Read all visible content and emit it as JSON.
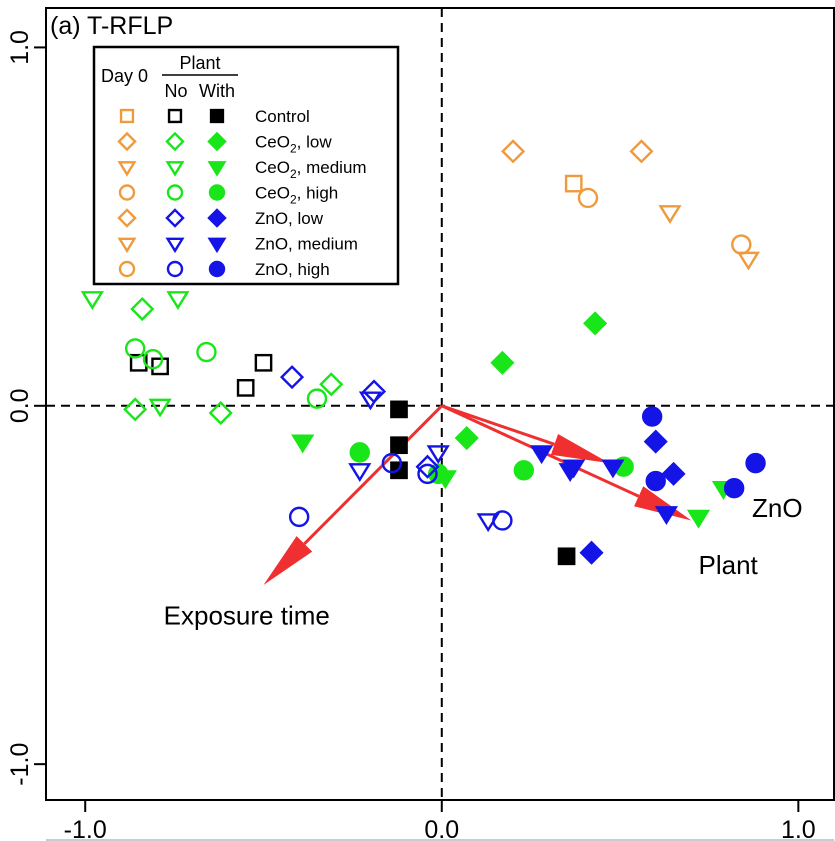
{
  "chart_data": {
    "type": "scatter",
    "title": "(a) T-RFLP",
    "xlabel": "",
    "ylabel": "",
    "xlim": [
      -1.11,
      1.1
    ],
    "ylim": [
      -1.1,
      1.11
    ],
    "x_ticks": [
      {
        "value": -1.0,
        "label": "-1.0"
      },
      {
        "value": 0.0,
        "label": "0.0"
      },
      {
        "value": 1.0,
        "label": "1.0"
      }
    ],
    "y_ticks": [
      {
        "value": 1.0,
        "label": "1.0"
      },
      {
        "value": 0.0,
        "label": "0.0"
      },
      {
        "value": -1.0,
        "label": "-1.0"
      }
    ],
    "reference_lines": {
      "x": 0,
      "y": 0,
      "style": "dashed"
    },
    "legend": {
      "placement": "top-left",
      "header_day0": "Day 0",
      "header_plant": "Plant",
      "header_no": "No",
      "header_with": "With",
      "rows": [
        {
          "label": "Control",
          "formula": "",
          "suffix": "",
          "marker": "square",
          "day0": true,
          "no": true,
          "with": true,
          "color": "#000000"
        },
        {
          "label": "",
          "formula": "CeO",
          "sub": "2",
          "suffix": ", low",
          "marker": "diamond",
          "day0": true,
          "no": true,
          "with": true,
          "color": "#19e619"
        },
        {
          "label": "",
          "formula": "CeO",
          "sub": "2",
          "suffix": ", medium",
          "marker": "triangle",
          "day0": true,
          "no": true,
          "with": true,
          "color": "#19e619"
        },
        {
          "label": "",
          "formula": "CeO",
          "sub": "2",
          "suffix": ", high",
          "marker": "circle",
          "day0": true,
          "no": true,
          "with": true,
          "color": "#19e619"
        },
        {
          "label": "ZnO, low",
          "formula": "",
          "suffix": "",
          "marker": "diamond",
          "day0": true,
          "no": true,
          "with": true,
          "color": "#1414e6"
        },
        {
          "label": "ZnO, medium",
          "formula": "",
          "suffix": "",
          "marker": "triangle",
          "day0": true,
          "no": true,
          "with": true,
          "color": "#1414e6"
        },
        {
          "label": "ZnO, high",
          "formula": "",
          "suffix": "",
          "marker": "circle",
          "day0": true,
          "no": true,
          "with": true,
          "color": "#1414e6"
        }
      ]
    },
    "colors": {
      "day0": "#ef9a3c",
      "ceo2": "#19e619",
      "zno": "#1414e6",
      "control": "#000000",
      "arrow": "#f03030"
    },
    "series": [
      {
        "group": "Control",
        "state": "day0",
        "marker": "square",
        "filled": false,
        "color": "#ef9a3c",
        "points": [
          [
            0.37,
            0.62
          ]
        ]
      },
      {
        "group": "Control",
        "state": "no_plant",
        "marker": "square",
        "filled": false,
        "color": "#000000",
        "points": [
          [
            -0.85,
            0.12
          ],
          [
            -0.79,
            0.11
          ],
          [
            -0.55,
            0.05
          ],
          [
            -0.5,
            0.12
          ]
        ]
      },
      {
        "group": "Control",
        "state": "with_plant",
        "marker": "square",
        "filled": true,
        "color": "#000000",
        "points": [
          [
            -0.12,
            -0.01
          ],
          [
            -0.12,
            -0.11
          ],
          [
            -0.12,
            -0.18
          ],
          [
            0.35,
            -0.42
          ]
        ]
      },
      {
        "group": "CeO2 low",
        "state": "day0",
        "marker": "diamond",
        "filled": false,
        "color": "#ef9a3c",
        "points": [
          [
            0.2,
            0.71
          ],
          [
            0.56,
            0.71
          ]
        ]
      },
      {
        "group": "CeO2 low",
        "state": "no_plant",
        "marker": "diamond",
        "filled": false,
        "color": "#19e619",
        "points": [
          [
            -0.84,
            0.27
          ],
          [
            -0.86,
            -0.01
          ],
          [
            -0.62,
            -0.02
          ],
          [
            -0.31,
            0.06
          ]
        ]
      },
      {
        "group": "CeO2 low",
        "state": "with_plant",
        "marker": "diamond",
        "filled": true,
        "color": "#19e619",
        "points": [
          [
            0.43,
            0.23
          ],
          [
            0.17,
            0.12
          ],
          [
            0.07,
            -0.09
          ]
        ]
      },
      {
        "group": "CeO2 medium",
        "state": "day0",
        "marker": "triangle",
        "filled": false,
        "color": "#ef9a3c",
        "points": [
          [
            0.64,
            0.54
          ],
          [
            0.86,
            0.41
          ]
        ]
      },
      {
        "group": "CeO2 medium",
        "state": "no_plant",
        "marker": "triangle",
        "filled": false,
        "color": "#19e619",
        "points": [
          [
            -0.98,
            0.3
          ],
          [
            -0.74,
            0.3
          ],
          [
            -0.79,
            0.0
          ]
        ]
      },
      {
        "group": "CeO2 medium",
        "state": "with_plant",
        "marker": "triangle",
        "filled": true,
        "color": "#19e619",
        "points": [
          [
            -0.39,
            -0.1
          ],
          [
            0.01,
            -0.2
          ],
          [
            0.72,
            -0.31
          ],
          [
            0.79,
            -0.23
          ]
        ]
      },
      {
        "group": "CeO2 high",
        "state": "day0",
        "marker": "circle",
        "filled": false,
        "color": "#ef9a3c",
        "points": [
          [
            0.41,
            0.58
          ],
          [
            0.84,
            0.45
          ]
        ]
      },
      {
        "group": "CeO2 high",
        "state": "no_plant",
        "marker": "circle",
        "filled": false,
        "color": "#19e619",
        "points": [
          [
            -0.86,
            0.16
          ],
          [
            -0.81,
            0.13
          ],
          [
            -0.66,
            0.15
          ],
          [
            -0.35,
            0.02
          ]
        ]
      },
      {
        "group": "CeO2 high",
        "state": "with_plant",
        "marker": "circle",
        "filled": true,
        "color": "#19e619",
        "points": [
          [
            -0.23,
            -0.13
          ],
          [
            -0.01,
            -0.19
          ],
          [
            0.23,
            -0.18
          ],
          [
            0.51,
            -0.17
          ]
        ]
      },
      {
        "group": "ZnO low",
        "state": "no_plant",
        "marker": "diamond",
        "filled": false,
        "color": "#1414e6",
        "points": [
          [
            -0.42,
            0.08
          ],
          [
            -0.19,
            0.04
          ],
          [
            -0.04,
            -0.17
          ]
        ]
      },
      {
        "group": "ZnO low",
        "state": "with_plant",
        "marker": "diamond",
        "filled": true,
        "color": "#1414e6",
        "points": [
          [
            0.6,
            -0.1
          ],
          [
            0.65,
            -0.19
          ],
          [
            0.42,
            -0.41
          ]
        ]
      },
      {
        "group": "ZnO medium",
        "state": "no_plant",
        "marker": "triangle",
        "filled": false,
        "color": "#1414e6",
        "points": [
          [
            -0.2,
            0.02
          ],
          [
            -0.23,
            -0.18
          ],
          [
            -0.01,
            -0.13
          ],
          [
            0.13,
            -0.32
          ]
        ]
      },
      {
        "group": "ZnO medium",
        "state": "with_plant",
        "marker": "triangle",
        "filled": true,
        "color": "#1414e6",
        "points": [
          [
            0.28,
            -0.13
          ],
          [
            0.37,
            -0.17
          ],
          [
            0.48,
            -0.17
          ],
          [
            0.36,
            -0.18
          ],
          [
            0.63,
            -0.3
          ]
        ]
      },
      {
        "group": "ZnO high",
        "state": "no_plant",
        "marker": "circle",
        "filled": false,
        "color": "#1414e6",
        "points": [
          [
            -0.4,
            -0.31
          ],
          [
            -0.14,
            -0.16
          ],
          [
            -0.04,
            -0.19
          ],
          [
            0.17,
            -0.32
          ]
        ]
      },
      {
        "group": "ZnO high",
        "state": "with_plant",
        "marker": "circle",
        "filled": true,
        "color": "#1414e6",
        "points": [
          [
            0.59,
            -0.03
          ],
          [
            0.6,
            -0.21
          ],
          [
            0.82,
            -0.23
          ],
          [
            0.88,
            -0.16
          ]
        ]
      }
    ],
    "arrows": [
      {
        "label": "Exposure time",
        "x": -0.5,
        "y": -0.5
      },
      {
        "label": "Plant",
        "x": 0.7,
        "y": -0.32
      },
      {
        "label": "ZnO",
        "x": 0.47,
        "y": -0.16
      }
    ],
    "annotations": [
      {
        "text": "Exposure time",
        "x": -0.78,
        "y": -0.61
      },
      {
        "text": "Plant",
        "x": 0.72,
        "y": -0.47
      },
      {
        "text": "ZnO",
        "x": 0.87,
        "y": -0.31
      }
    ]
  }
}
